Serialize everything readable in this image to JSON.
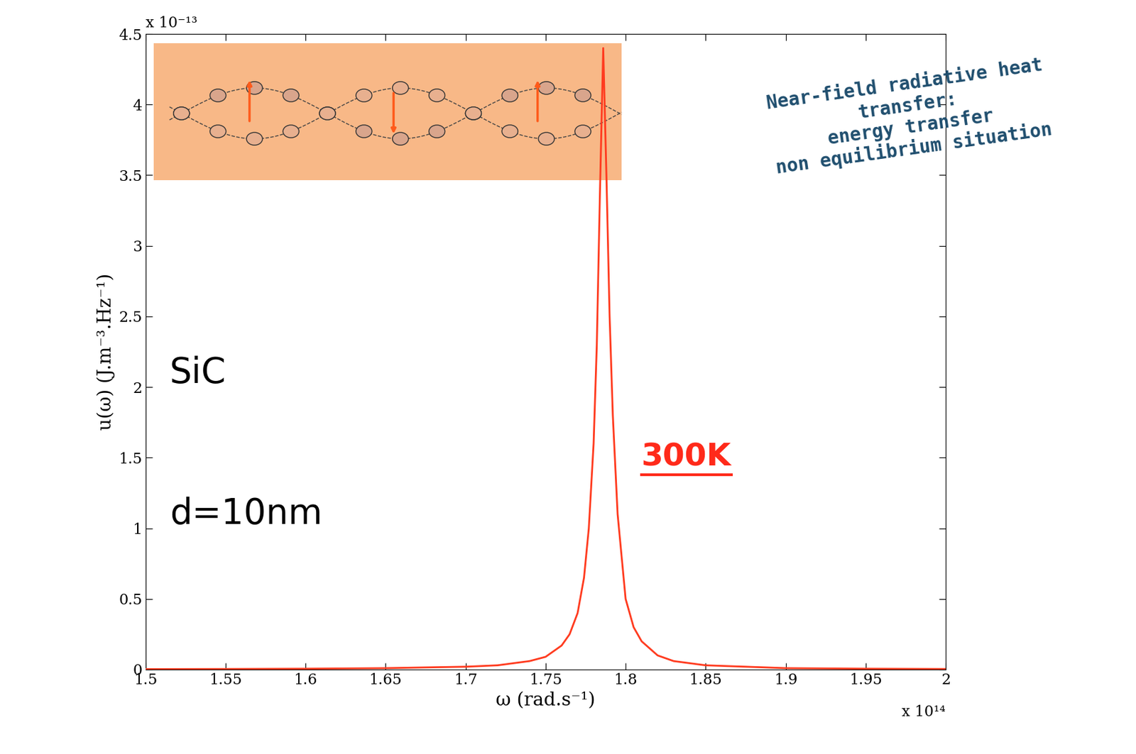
{
  "chart_data": {
    "type": "line",
    "x_label": "ω (rad.s⁻¹)",
    "y_label": "u(ω) (J.m⁻³.Hz⁻¹)",
    "x_multiplier": "x 10¹⁴",
    "y_multiplier": "x 10⁻¹³",
    "annotations": {
      "headline": "Near-field radiative heat\ntransfer:\nenergy transfer\nnon equilibrium situation",
      "material": "SiC",
      "distance": "d=10nm",
      "temperature": "300K"
    },
    "series": [
      {
        "name": "u",
        "color": "#ff3b1f",
        "x": [
          1.5,
          1.55,
          1.6,
          1.65,
          1.7,
          1.72,
          1.74,
          1.75,
          1.76,
          1.765,
          1.77,
          1.774,
          1.777,
          1.78,
          1.782,
          1.784,
          1.786,
          1.788,
          1.79,
          1.792,
          1.795,
          1.8,
          1.805,
          1.81,
          1.82,
          1.83,
          1.85,
          1.9,
          1.95,
          2
        ],
        "values": [
          0.003,
          0.004,
          0.006,
          0.01,
          0.02,
          0.03,
          0.06,
          0.09,
          0.17,
          0.25,
          0.4,
          0.65,
          1.0,
          1.6,
          2.3,
          3.4,
          4.4,
          3.5,
          2.5,
          1.8,
          1.1,
          0.5,
          0.3,
          0.2,
          0.1,
          0.06,
          0.03,
          0.01,
          0.006,
          0.004
        ]
      }
    ],
    "xlim": [
      1.5,
      2
    ],
    "ylim": [
      0,
      4.5
    ],
    "xticks": [
      1.5,
      1.55,
      1.6,
      1.65,
      1.7,
      1.75,
      1.8,
      1.85,
      1.9,
      1.95,
      2
    ],
    "yticks": [
      0,
      0.5,
      1,
      1.5,
      2,
      2.5,
      3,
      3.5,
      4,
      4.5
    ],
    "grid": false
  }
}
